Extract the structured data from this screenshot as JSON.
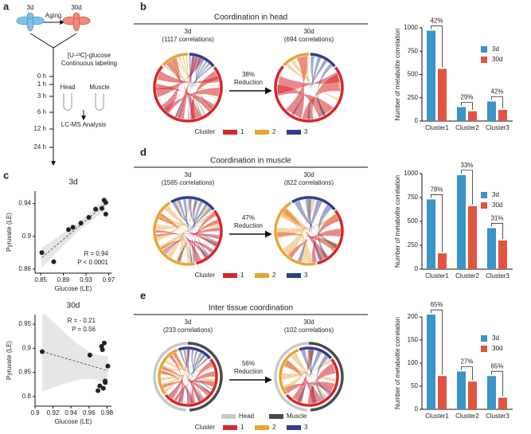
{
  "panel_labels": [
    "a",
    "b",
    "c",
    "d",
    "e"
  ],
  "panel_a": {
    "before": "3d",
    "process": "Aging",
    "after": "30d",
    "tracer": "[U-¹³C]-glucose",
    "labeling": "Continuous labeling",
    "timepoints": [
      "0 h",
      "1 h",
      "3 h",
      "6 h",
      "12 h",
      "24 h"
    ],
    "tissues": [
      "Head",
      "Muscle"
    ],
    "analysis": "LC-MS Analysis"
  },
  "chords": [
    {
      "title": "Coordination in head",
      "left_label": "3d",
      "left_count": "(1117 correlations)",
      "right_label": "30d",
      "right_count": "(694 correlations)",
      "change": "38%",
      "change_label": "Reduction",
      "legend_title": "Cluster",
      "clusters": [
        "1",
        "2",
        "3"
      ],
      "cluster_colors": [
        "#d7262b",
        "#e8a33a",
        "#2e3f8f"
      ]
    },
    {
      "title": "Coordination in muscle",
      "left_label": "3d",
      "left_count": "(1565 correlations)",
      "right_label": "30d",
      "right_count": "(822 correlations)",
      "change": "47%",
      "change_label": "Reduction",
      "legend_title": "Cluster",
      "clusters": [
        "1",
        "2",
        "3"
      ],
      "cluster_colors": [
        "#d7262b",
        "#e8a33a",
        "#2e3f8f"
      ]
    },
    {
      "title": "Inter tissue coordination",
      "left_label": "3d",
      "left_count": "(233 correlations)",
      "right_label": "30d",
      "right_count": "(102 correlations)",
      "change": "56%",
      "change_label": "Reduction",
      "legend_title": "Cluster",
      "clusters": [
        "1",
        "2",
        "3"
      ],
      "cluster_colors": [
        "#d7262b",
        "#e8a33a",
        "#2e3f8f"
      ],
      "tissues": [
        "Head",
        "Muscle"
      ],
      "tissue_colors": [
        "#c8c8c8",
        "#4a4a4a"
      ]
    }
  ],
  "chart_data": [
    {
      "type": "bar",
      "ylabel": "Number of metabolite correlation",
      "categories": [
        "Cluster1",
        "Cluster2",
        "Cluster3"
      ],
      "series": [
        {
          "name": "3d",
          "color": "#3b94c6",
          "values": [
            970,
            150,
            210
          ]
        },
        {
          "name": "30d",
          "color": "#e0533f",
          "values": [
            560,
            105,
            120
          ]
        }
      ],
      "annotations": [
        "42%",
        "29%",
        "42%"
      ],
      "ylim": [
        0,
        1000
      ],
      "yticks": [
        0,
        250,
        500,
        750,
        1000
      ],
      "legend": "upper right"
    },
    {
      "type": "bar",
      "ylabel": "Number of metabolite correlation",
      "categories": [
        "Cluster1",
        "Cluster2",
        "Cluster3"
      ],
      "series": [
        {
          "name": "3d",
          "color": "#3b94c6",
          "values": [
            730,
            985,
            430
          ]
        },
        {
          "name": "30d",
          "color": "#e0533f",
          "values": [
            165,
            660,
            300
          ]
        }
      ],
      "annotations": [
        "78%",
        "33%",
        "31%"
      ],
      "ylim": [
        0,
        1000
      ],
      "yticks": [
        0,
        250,
        500,
        750,
        1000
      ],
      "legend": "upper right"
    },
    {
      "type": "bar",
      "ylabel": "Number of metabolite correlation",
      "categories": [
        "Cluster1",
        "Cluster2",
        "Cluster3"
      ],
      "series": [
        {
          "name": "3d",
          "color": "#3b94c6",
          "values": [
            205,
            82,
            72
          ]
        },
        {
          "name": "30d",
          "color": "#e0533f",
          "values": [
            72,
            60,
            25
          ]
        }
      ],
      "annotations": [
        "65%",
        "27%",
        "65%"
      ],
      "ylim": [
        0,
        200
      ],
      "yticks": [
        0,
        50,
        100,
        150,
        200
      ],
      "legend": "upper right"
    },
    {
      "type": "scatter",
      "title": "3d",
      "xlabel": "Glucose (LE)",
      "ylabel": "Pyruvate (LE)",
      "color": "#222222",
      "x": [
        0.852,
        0.873,
        0.899,
        0.907,
        0.921,
        0.935,
        0.947,
        0.958,
        0.962,
        0.965,
        0.965
      ],
      "y": [
        0.88,
        0.869,
        0.908,
        0.911,
        0.916,
        0.923,
        0.933,
        0.934,
        0.944,
        0.941,
        0.927
      ],
      "annotations": [
        "R = 0.94",
        "P < 0.0001"
      ],
      "xlim": [
        0.84,
        0.975
      ],
      "ylim": [
        0.855,
        0.955
      ],
      "xticks": [
        0.85,
        0.89,
        0.93,
        0.97
      ],
      "yticks": [
        0.86,
        0.9,
        0.94
      ]
    },
    {
      "type": "scatter",
      "title": "30d",
      "xlabel": "Glucose (LE)",
      "ylabel": "Pyruvate (LE)",
      "color": "#222222",
      "x": [
        0.908,
        0.961,
        0.97,
        0.972,
        0.974,
        0.975,
        0.977,
        0.978,
        0.978,
        0.981,
        0.976
      ],
      "y": [
        0.893,
        0.886,
        0.812,
        0.822,
        0.904,
        0.897,
        0.911,
        0.829,
        0.832,
        0.863,
        0.817
      ],
      "annotations": [
        "R = - 0.21",
        "P = 0.56"
      ],
      "xlim": [
        0.9,
        0.985
      ],
      "ylim": [
        0.78,
        0.97
      ],
      "xticks": [
        0.9,
        0.92,
        0.94,
        0.96,
        0.98
      ],
      "yticks": [
        0.8,
        0.85,
        0.9,
        0.95
      ]
    }
  ]
}
